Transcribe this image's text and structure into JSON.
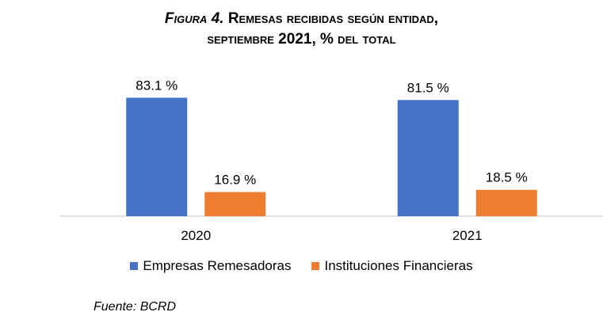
{
  "title_prefix": "Figura 4.",
  "title_rest": " Remesas recibidas según entidad,",
  "title_line2": "septiembre 2021, % del total",
  "source": "Fuente: BCRD",
  "colors": {
    "series1": "#4472C4",
    "series2": "#ED7D31",
    "axis": "#BFBFBF"
  },
  "chart_data": {
    "type": "bar",
    "categories": [
      "2020",
      "2021"
    ],
    "series": [
      {
        "name": "Empresas Remesadoras",
        "values": [
          83.1,
          81.5
        ],
        "labels": [
          "83.1 %",
          "81.5 %"
        ]
      },
      {
        "name": "Instituciones Financieras",
        "values": [
          16.9,
          18.5
        ],
        "labels": [
          "16.9 %",
          "18.5 %"
        ]
      }
    ],
    "ylim": [
      0,
      100
    ],
    "grid": false,
    "legend": "bottom"
  }
}
